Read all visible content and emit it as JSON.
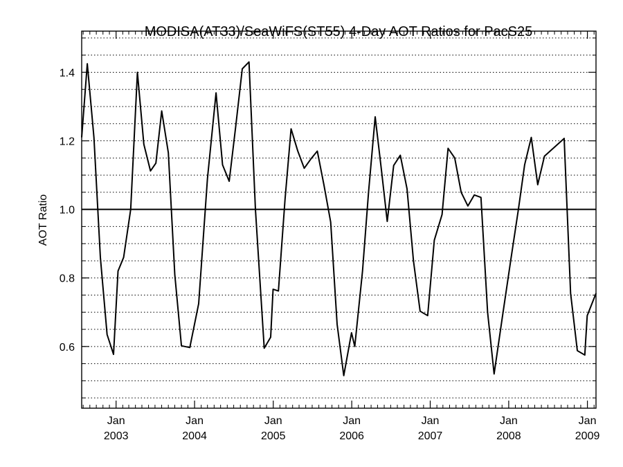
{
  "chart_data": {
    "type": "line",
    "title": "MODISA(AT33)/SeaWiFS(ST55) 4-Day AOT Ratios for PacS25",
    "ylabel": "AOT Ratio",
    "xlabel": "",
    "xlim": [
      "2002-07-25",
      "2009-02-10"
    ],
    "ylim": [
      0.42,
      1.52
    ],
    "grid": "horizontal dotted lines",
    "reference_line": 1.0,
    "y_ticks": [
      {
        "value": 0.6,
        "label": "0.6"
      },
      {
        "value": 0.8,
        "label": "0.8"
      },
      {
        "value": 1.0,
        "label": "1.0"
      },
      {
        "value": 1.2,
        "label": "1.2"
      },
      {
        "value": 1.4,
        "label": "1.4"
      }
    ],
    "x_ticks": [
      {
        "date": "2003-01-01",
        "month": "Jan",
        "year": "2003"
      },
      {
        "date": "2004-01-01",
        "month": "Jan",
        "year": "2004"
      },
      {
        "date": "2005-01-01",
        "month": "Jan",
        "year": "2005"
      },
      {
        "date": "2006-01-01",
        "month": "Jan",
        "year": "2006"
      },
      {
        "date": "2007-01-01",
        "month": "Jan",
        "year": "2007"
      },
      {
        "date": "2008-01-01",
        "month": "Jan",
        "year": "2008"
      },
      {
        "date": "2009-01-01",
        "month": "Jan",
        "year": "2009"
      }
    ],
    "series": [
      {
        "points": [
          [
            "2002-07-25",
            1.21
          ],
          [
            "2002-08-20",
            1.425
          ],
          [
            "2002-09-20",
            1.21
          ],
          [
            "2002-10-20",
            0.86
          ],
          [
            "2002-11-20",
            0.635
          ],
          [
            "2002-12-20",
            0.577
          ],
          [
            "2003-01-10",
            0.82
          ],
          [
            "2003-02-05",
            0.86
          ],
          [
            "2003-03-10",
            1.0
          ],
          [
            "2003-04-10",
            1.4
          ],
          [
            "2003-05-10",
            1.19
          ],
          [
            "2003-06-10",
            1.112
          ],
          [
            "2003-07-05",
            1.135
          ],
          [
            "2003-08-01",
            1.287
          ],
          [
            "2003-09-01",
            1.165
          ],
          [
            "2003-10-01",
            0.81
          ],
          [
            "2003-11-01",
            0.602
          ],
          [
            "2003-12-10",
            0.597
          ],
          [
            "2004-01-20",
            0.725
          ],
          [
            "2004-03-01",
            1.09
          ],
          [
            "2004-04-10",
            1.34
          ],
          [
            "2004-05-10",
            1.13
          ],
          [
            "2004-06-10",
            1.082
          ],
          [
            "2004-07-10",
            1.24
          ],
          [
            "2004-08-10",
            1.41
          ],
          [
            "2004-09-10",
            1.43
          ],
          [
            "2004-10-10",
            1.0
          ],
          [
            "2004-11-20",
            0.595
          ],
          [
            "2004-12-20",
            0.627
          ],
          [
            "2004-12-31",
            0.767
          ],
          [
            "2005-01-25",
            0.762
          ],
          [
            "2005-02-25",
            1.03
          ],
          [
            "2005-03-25",
            1.235
          ],
          [
            "2005-04-25",
            1.17
          ],
          [
            "2005-05-25",
            1.12
          ],
          [
            "2005-06-25",
            1.147
          ],
          [
            "2005-07-25",
            1.17
          ],
          [
            "2005-08-25",
            1.07
          ],
          [
            "2005-09-25",
            0.963
          ],
          [
            "2005-10-25",
            0.665
          ],
          [
            "2005-11-25",
            0.515
          ],
          [
            "2005-12-31",
            0.64
          ],
          [
            "2006-01-15",
            0.6
          ],
          [
            "2006-02-20",
            0.82
          ],
          [
            "2006-03-20",
            1.05
          ],
          [
            "2006-04-20",
            1.27
          ],
          [
            "2006-05-20",
            1.11
          ],
          [
            "2006-06-15",
            0.965
          ],
          [
            "2006-07-15",
            1.128
          ],
          [
            "2006-08-15",
            1.158
          ],
          [
            "2006-09-15",
            1.06
          ],
          [
            "2006-10-15",
            0.85
          ],
          [
            "2006-11-15",
            0.703
          ],
          [
            "2006-12-20",
            0.69
          ],
          [
            "2007-01-20",
            0.91
          ],
          [
            "2007-02-25",
            0.985
          ],
          [
            "2007-03-25",
            1.178
          ],
          [
            "2007-04-25",
            1.15
          ],
          [
            "2007-05-25",
            1.05
          ],
          [
            "2007-06-25",
            1.01
          ],
          [
            "2007-07-25",
            1.042
          ],
          [
            "2007-08-25",
            1.035
          ],
          [
            "2007-09-25",
            0.7
          ],
          [
            "2007-10-25",
            0.52
          ],
          [
            "2007-12-01",
            0.68
          ],
          [
            "2008-01-10",
            0.85
          ],
          [
            "2008-02-15",
            1.0
          ],
          [
            "2008-03-15",
            1.13
          ],
          [
            "2008-04-15",
            1.21
          ],
          [
            "2008-05-15",
            1.072
          ],
          [
            "2008-06-15",
            1.155
          ],
          [
            "2008-09-15",
            1.207
          ],
          [
            "2008-10-15",
            0.755
          ],
          [
            "2008-11-15",
            0.588
          ],
          [
            "2008-12-20",
            0.575
          ],
          [
            "2008-12-31",
            0.69
          ],
          [
            "2009-02-10",
            0.755
          ]
        ]
      }
    ]
  }
}
